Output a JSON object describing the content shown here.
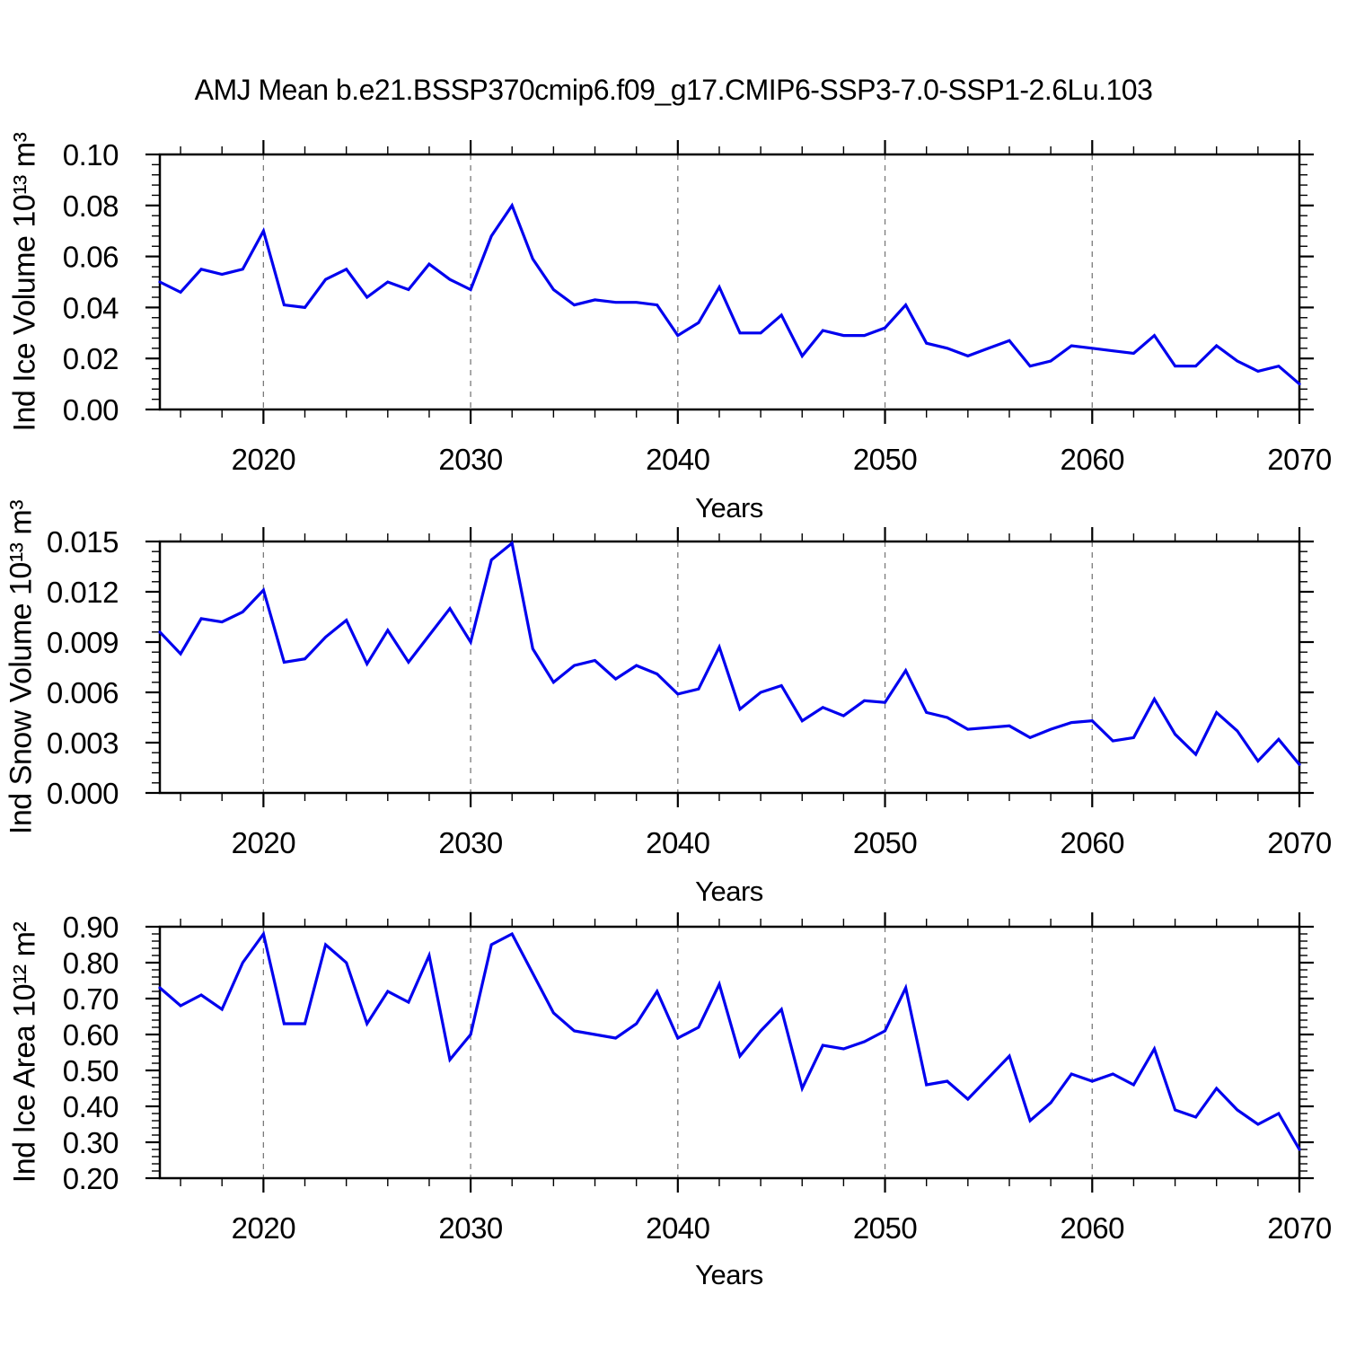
{
  "title": "AMJ Mean b.e21.BSSP370cmip6.f09_g17.CMIP6-SSP3-7.0-SSP1-2.6Lu.103",
  "line_color": "#0000EE",
  "grid_color": "#7a7a7a",
  "axis_color": "#000000",
  "chart_data": [
    {
      "type": "line",
      "title": "",
      "ylabel": "Ind Ice Volume 10¹³ m³",
      "xlabel": "Years",
      "ylim": [
        0.0,
        0.1
      ],
      "xlim": [
        2015,
        2070
      ],
      "ytick_labels": [
        "0.00",
        "0.02",
        "0.04",
        "0.06",
        "0.08",
        "0.10"
      ],
      "y_minor_step": 0.004,
      "xtick_labels": [
        "2020",
        "2030",
        "2040",
        "2050",
        "2060",
        "2070"
      ],
      "x_minor_step": 2,
      "grid_x": [
        2020,
        2030,
        2040,
        2050,
        2060
      ],
      "legend": "none",
      "x": [
        2015,
        2016,
        2017,
        2018,
        2019,
        2020,
        2021,
        2022,
        2023,
        2024,
        2025,
        2026,
        2027,
        2028,
        2029,
        2030,
        2031,
        2032,
        2033,
        2034,
        2035,
        2036,
        2037,
        2038,
        2039,
        2040,
        2041,
        2042,
        2043,
        2044,
        2045,
        2046,
        2047,
        2048,
        2049,
        2050,
        2051,
        2052,
        2053,
        2054,
        2055,
        2056,
        2057,
        2058,
        2059,
        2060,
        2061,
        2062,
        2063,
        2064,
        2065,
        2066,
        2067,
        2068,
        2069,
        2070
      ],
      "values": [
        0.05,
        0.046,
        0.055,
        0.053,
        0.055,
        0.07,
        0.041,
        0.04,
        0.051,
        0.055,
        0.044,
        0.05,
        0.047,
        0.057,
        0.051,
        0.047,
        0.068,
        0.08,
        0.059,
        0.047,
        0.041,
        0.043,
        0.042,
        0.042,
        0.041,
        0.029,
        0.034,
        0.048,
        0.03,
        0.03,
        0.037,
        0.021,
        0.031,
        0.029,
        0.029,
        0.032,
        0.041,
        0.026,
        0.024,
        0.021,
        0.024,
        0.027,
        0.017,
        0.019,
        0.025,
        0.024,
        0.023,
        0.022,
        0.029,
        0.017,
        0.017,
        0.025,
        0.019,
        0.015,
        0.017,
        0.01
      ]
    },
    {
      "type": "line",
      "title": "",
      "ylabel": "Ind Snow Volume 10¹³ m³",
      "xlabel": "Years",
      "ylim": [
        0.0,
        0.015
      ],
      "xlim": [
        2015,
        2070
      ],
      "ytick_labels": [
        "0.000",
        "0.003",
        "0.006",
        "0.009",
        "0.012",
        "0.015"
      ],
      "y_minor_step": 0.0006,
      "xtick_labels": [
        "2020",
        "2030",
        "2040",
        "2050",
        "2060",
        "2070"
      ],
      "x_minor_step": 2,
      "grid_x": [
        2020,
        2030,
        2040,
        2050,
        2060
      ],
      "legend": "none",
      "x": [
        2015,
        2016,
        2017,
        2018,
        2019,
        2020,
        2021,
        2022,
        2023,
        2024,
        2025,
        2026,
        2027,
        2028,
        2029,
        2030,
        2031,
        2032,
        2033,
        2034,
        2035,
        2036,
        2037,
        2038,
        2039,
        2040,
        2041,
        2042,
        2043,
        2044,
        2045,
        2046,
        2047,
        2048,
        2049,
        2050,
        2051,
        2052,
        2053,
        2054,
        2055,
        2056,
        2057,
        2058,
        2059,
        2060,
        2061,
        2062,
        2063,
        2064,
        2065,
        2066,
        2067,
        2068,
        2069,
        2070
      ],
      "values": [
        0.0096,
        0.0083,
        0.0104,
        0.0102,
        0.0108,
        0.0121,
        0.0078,
        0.008,
        0.0093,
        0.0103,
        0.0077,
        0.0097,
        0.0078,
        0.0094,
        0.011,
        0.009,
        0.0139,
        0.0149,
        0.0086,
        0.0066,
        0.0076,
        0.0079,
        0.0068,
        0.0076,
        0.0071,
        0.0059,
        0.0062,
        0.0087,
        0.005,
        0.006,
        0.0064,
        0.0043,
        0.0051,
        0.0046,
        0.0055,
        0.0054,
        0.0073,
        0.0048,
        0.0045,
        0.0038,
        0.0039,
        0.004,
        0.0033,
        0.0038,
        0.0042,
        0.0043,
        0.0031,
        0.0033,
        0.0056,
        0.0035,
        0.0023,
        0.0048,
        0.0037,
        0.0019,
        0.0032,
        0.0017
      ]
    },
    {
      "type": "line",
      "title": "",
      "ylabel": "Ind Ice Area 10¹² m²",
      "xlabel": "Years",
      "ylim": [
        0.2,
        0.9
      ],
      "xlim": [
        2015,
        2070
      ],
      "ytick_labels": [
        "0.20",
        "0.30",
        "0.40",
        "0.50",
        "0.60",
        "0.70",
        "0.80",
        "0.90"
      ],
      "y_minor_step": 0.02,
      "xtick_labels": [
        "2020",
        "2030",
        "2040",
        "2050",
        "2060",
        "2070"
      ],
      "x_minor_step": 2,
      "grid_x": [
        2020,
        2030,
        2040,
        2050,
        2060
      ],
      "legend": "none",
      "x": [
        2015,
        2016,
        2017,
        2018,
        2019,
        2020,
        2021,
        2022,
        2023,
        2024,
        2025,
        2026,
        2027,
        2028,
        2029,
        2030,
        2031,
        2032,
        2033,
        2034,
        2035,
        2036,
        2037,
        2038,
        2039,
        2040,
        2041,
        2042,
        2043,
        2044,
        2045,
        2046,
        2047,
        2048,
        2049,
        2050,
        2051,
        2052,
        2053,
        2054,
        2055,
        2056,
        2057,
        2058,
        2059,
        2060,
        2061,
        2062,
        2063,
        2064,
        2065,
        2066,
        2067,
        2068,
        2069,
        2070
      ],
      "values": [
        0.73,
        0.68,
        0.71,
        0.67,
        0.8,
        0.88,
        0.63,
        0.63,
        0.85,
        0.8,
        0.63,
        0.72,
        0.69,
        0.82,
        0.53,
        0.6,
        0.85,
        0.88,
        0.77,
        0.66,
        0.61,
        0.6,
        0.59,
        0.63,
        0.72,
        0.59,
        0.62,
        0.74,
        0.54,
        0.61,
        0.67,
        0.45,
        0.57,
        0.56,
        0.58,
        0.61,
        0.73,
        0.46,
        0.47,
        0.42,
        0.48,
        0.54,
        0.36,
        0.41,
        0.49,
        0.47,
        0.49,
        0.46,
        0.56,
        0.39,
        0.37,
        0.45,
        0.39,
        0.35,
        0.38,
        0.28
      ]
    }
  ]
}
